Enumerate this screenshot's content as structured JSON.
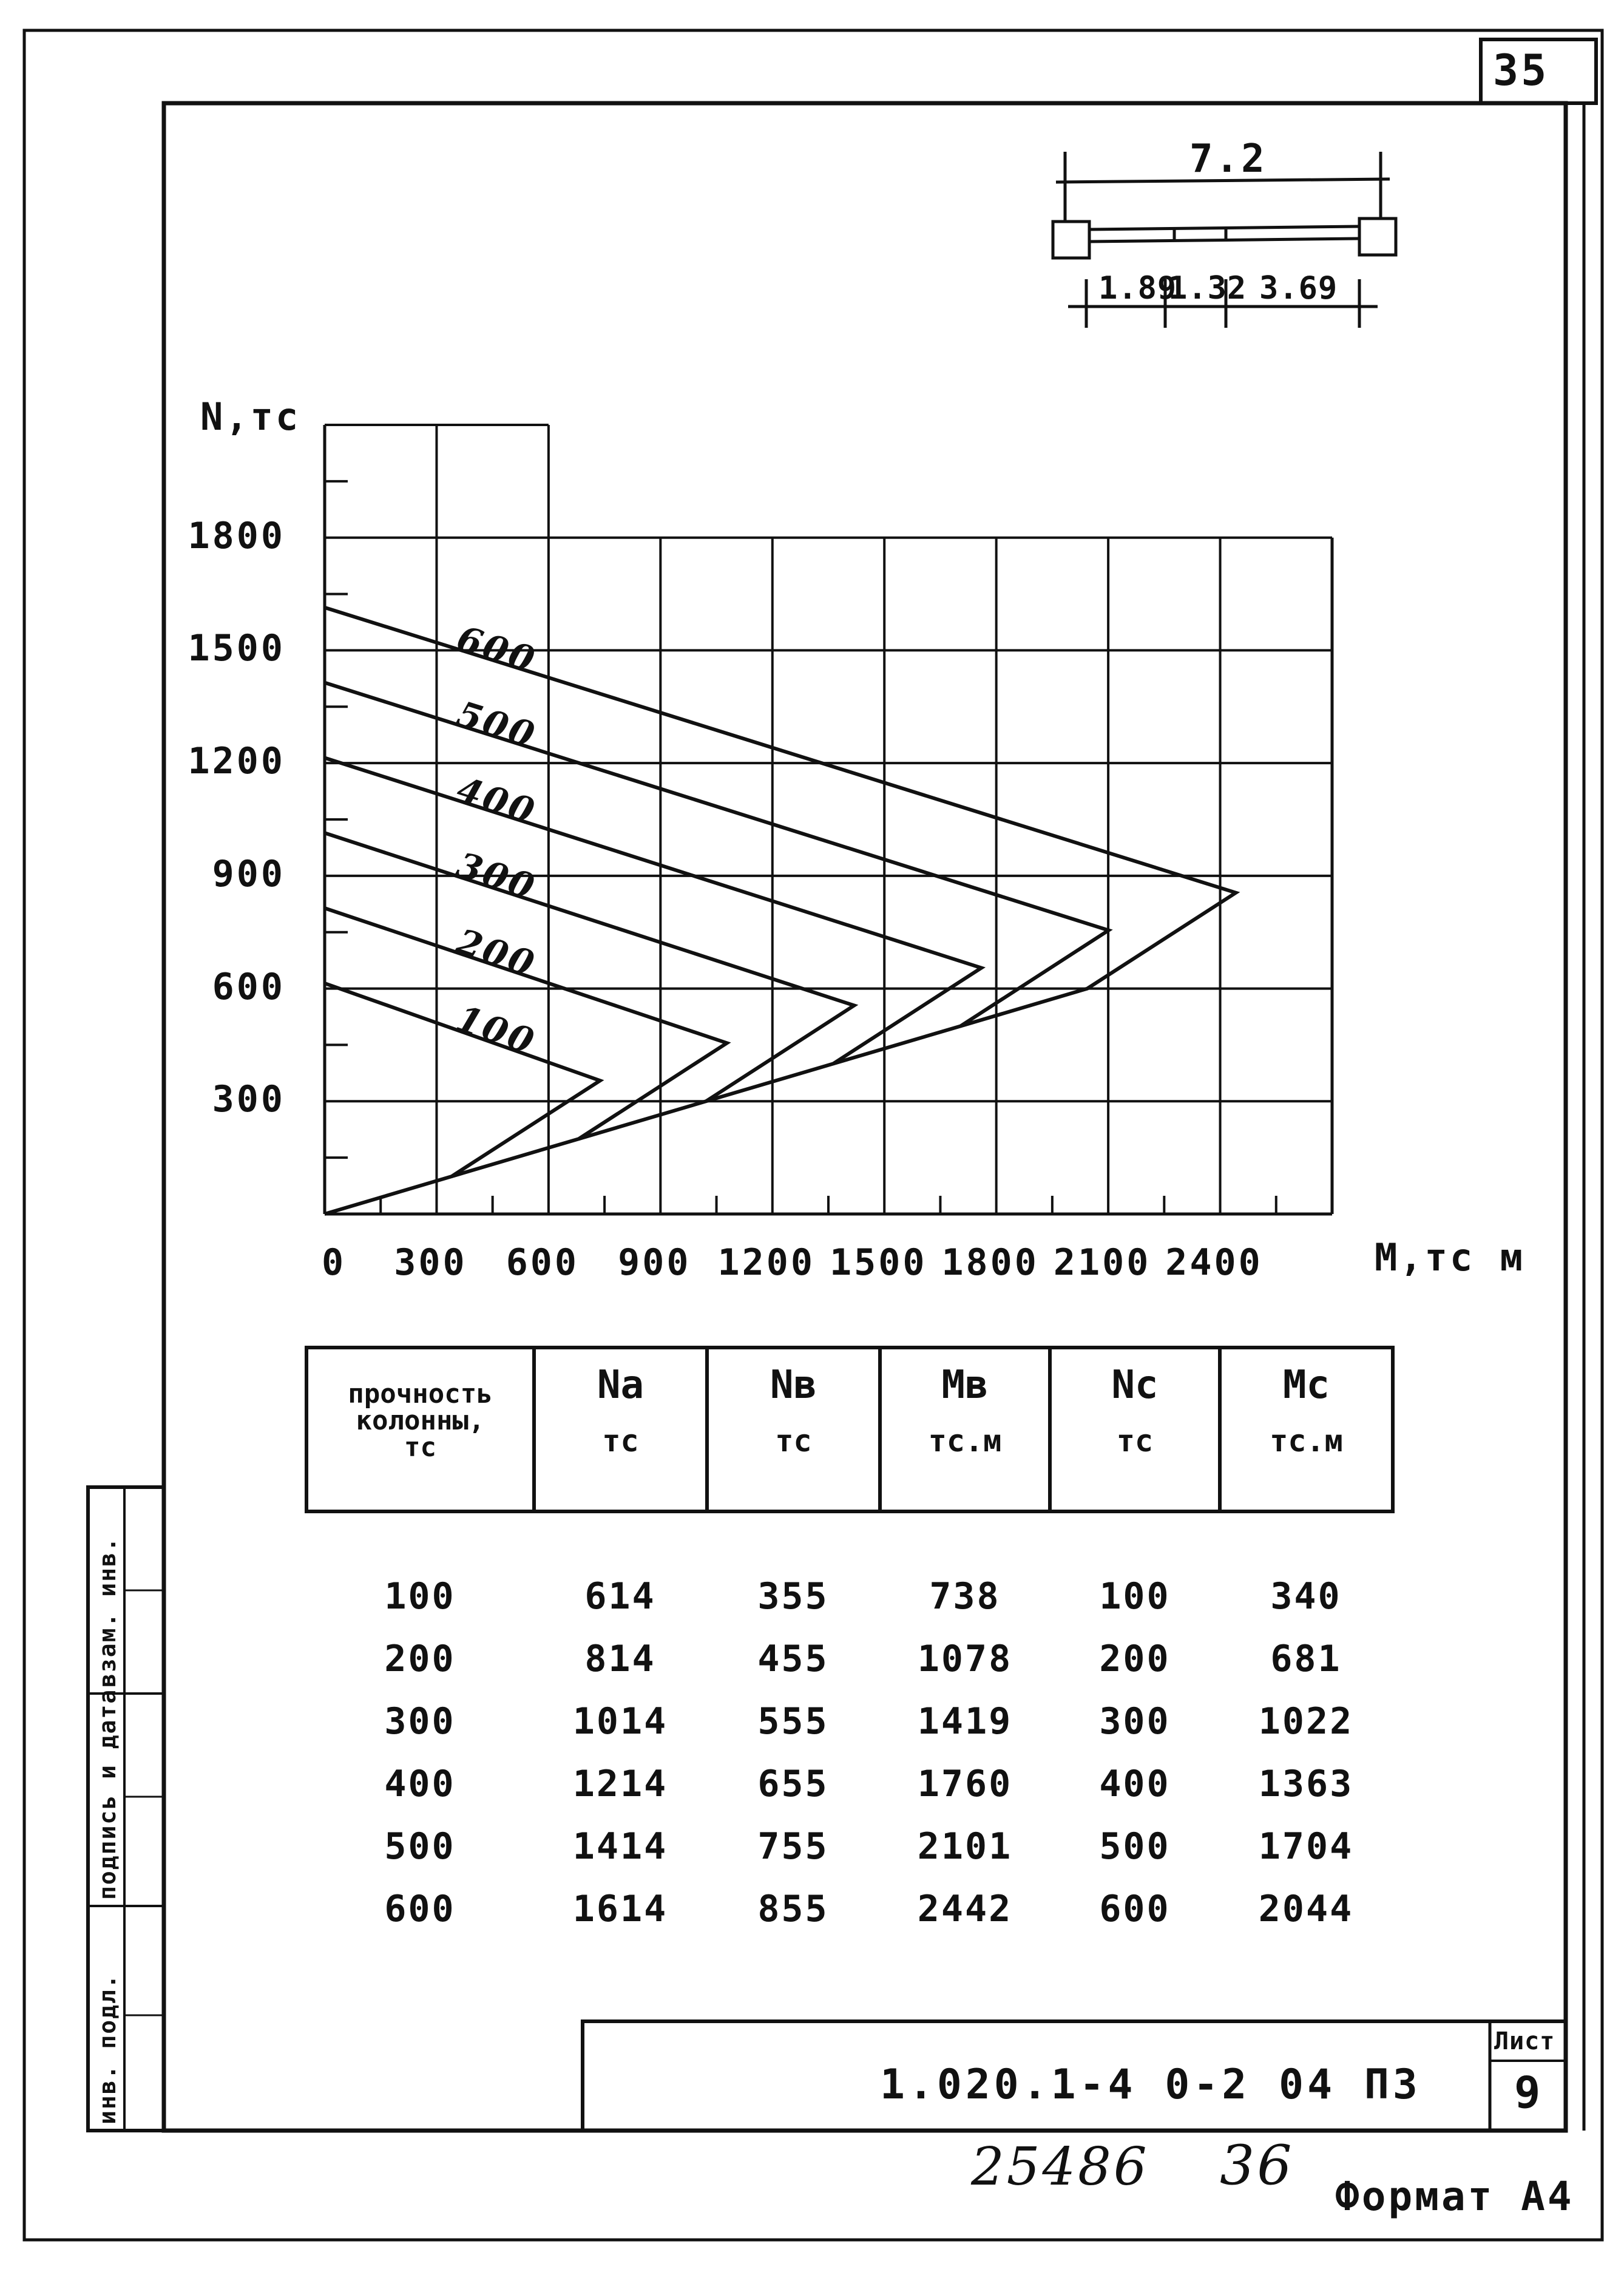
{
  "page_number": "35",
  "scheme": {
    "span": "7.2",
    "segments": [
      "1.89",
      "1.32",
      "3.69"
    ]
  },
  "chart_data": {
    "type": "line",
    "ylabel": "N,тс",
    "xlabel": "M,тс м",
    "x_ticks": [
      "0",
      "300",
      "600",
      "900",
      "1200",
      "1500",
      "1800",
      "2100",
      "2400"
    ],
    "y_ticks": [
      "300",
      "600",
      "900",
      "1200",
      "1500",
      "1800"
    ],
    "xlim": [
      0,
      2700
    ],
    "ylim": [
      0,
      2100
    ],
    "grid": true,
    "series": [
      {
        "name": "100",
        "points": [
          [
            0,
            614
          ],
          [
            738,
            355
          ],
          [
            340,
            100
          ],
          [
            0,
            0
          ]
        ]
      },
      {
        "name": "200",
        "points": [
          [
            0,
            814
          ],
          [
            1078,
            455
          ],
          [
            681,
            200
          ],
          [
            340,
            100
          ]
        ]
      },
      {
        "name": "300",
        "points": [
          [
            0,
            1014
          ],
          [
            1419,
            555
          ],
          [
            1022,
            300
          ],
          [
            681,
            200
          ]
        ]
      },
      {
        "name": "400",
        "points": [
          [
            0,
            1214
          ],
          [
            1760,
            655
          ],
          [
            1363,
            400
          ],
          [
            1022,
            300
          ]
        ]
      },
      {
        "name": "500",
        "points": [
          [
            0,
            1414
          ],
          [
            2101,
            755
          ],
          [
            1704,
            500
          ],
          [
            1363,
            400
          ]
        ]
      },
      {
        "name": "600",
        "points": [
          [
            0,
            1614
          ],
          [
            2442,
            855
          ],
          [
            2044,
            600
          ],
          [
            1704,
            500
          ]
        ]
      }
    ]
  },
  "table": {
    "header": {
      "col0": [
        "прочность",
        "колонны,",
        "тс"
      ],
      "cols": [
        {
          "top": "Na",
          "unit": "тс"
        },
        {
          "top": "Nв",
          "unit": "тс"
        },
        {
          "top": "Mв",
          "unit": "тс.м"
        },
        {
          "top": "Nc",
          "unit": "тс"
        },
        {
          "top": "Mc",
          "unit": "тс.м"
        }
      ]
    },
    "rows": [
      [
        "100",
        "614",
        "355",
        "738",
        "100",
        "340"
      ],
      [
        "200",
        "814",
        "455",
        "1078",
        "200",
        "681"
      ],
      [
        "300",
        "1014",
        "555",
        "1419",
        "300",
        "1022"
      ],
      [
        "400",
        "1214",
        "655",
        "1760",
        "400",
        "1363"
      ],
      [
        "500",
        "1414",
        "755",
        "2101",
        "500",
        "1704"
      ],
      [
        "600",
        "1614",
        "855",
        "2442",
        "600",
        "2044"
      ]
    ]
  },
  "sidebar": {
    "labels": [
      "инв. подл.",
      "подпись и дата",
      "взам. инв."
    ]
  },
  "stamp": {
    "code": "1.020.1-4   0-2   04 ПЗ",
    "sheet_label": "Лист",
    "sheet_number": "9"
  },
  "footer": {
    "handwritten_left": "25486",
    "handwritten_right": "36",
    "format": "Формат А4"
  }
}
